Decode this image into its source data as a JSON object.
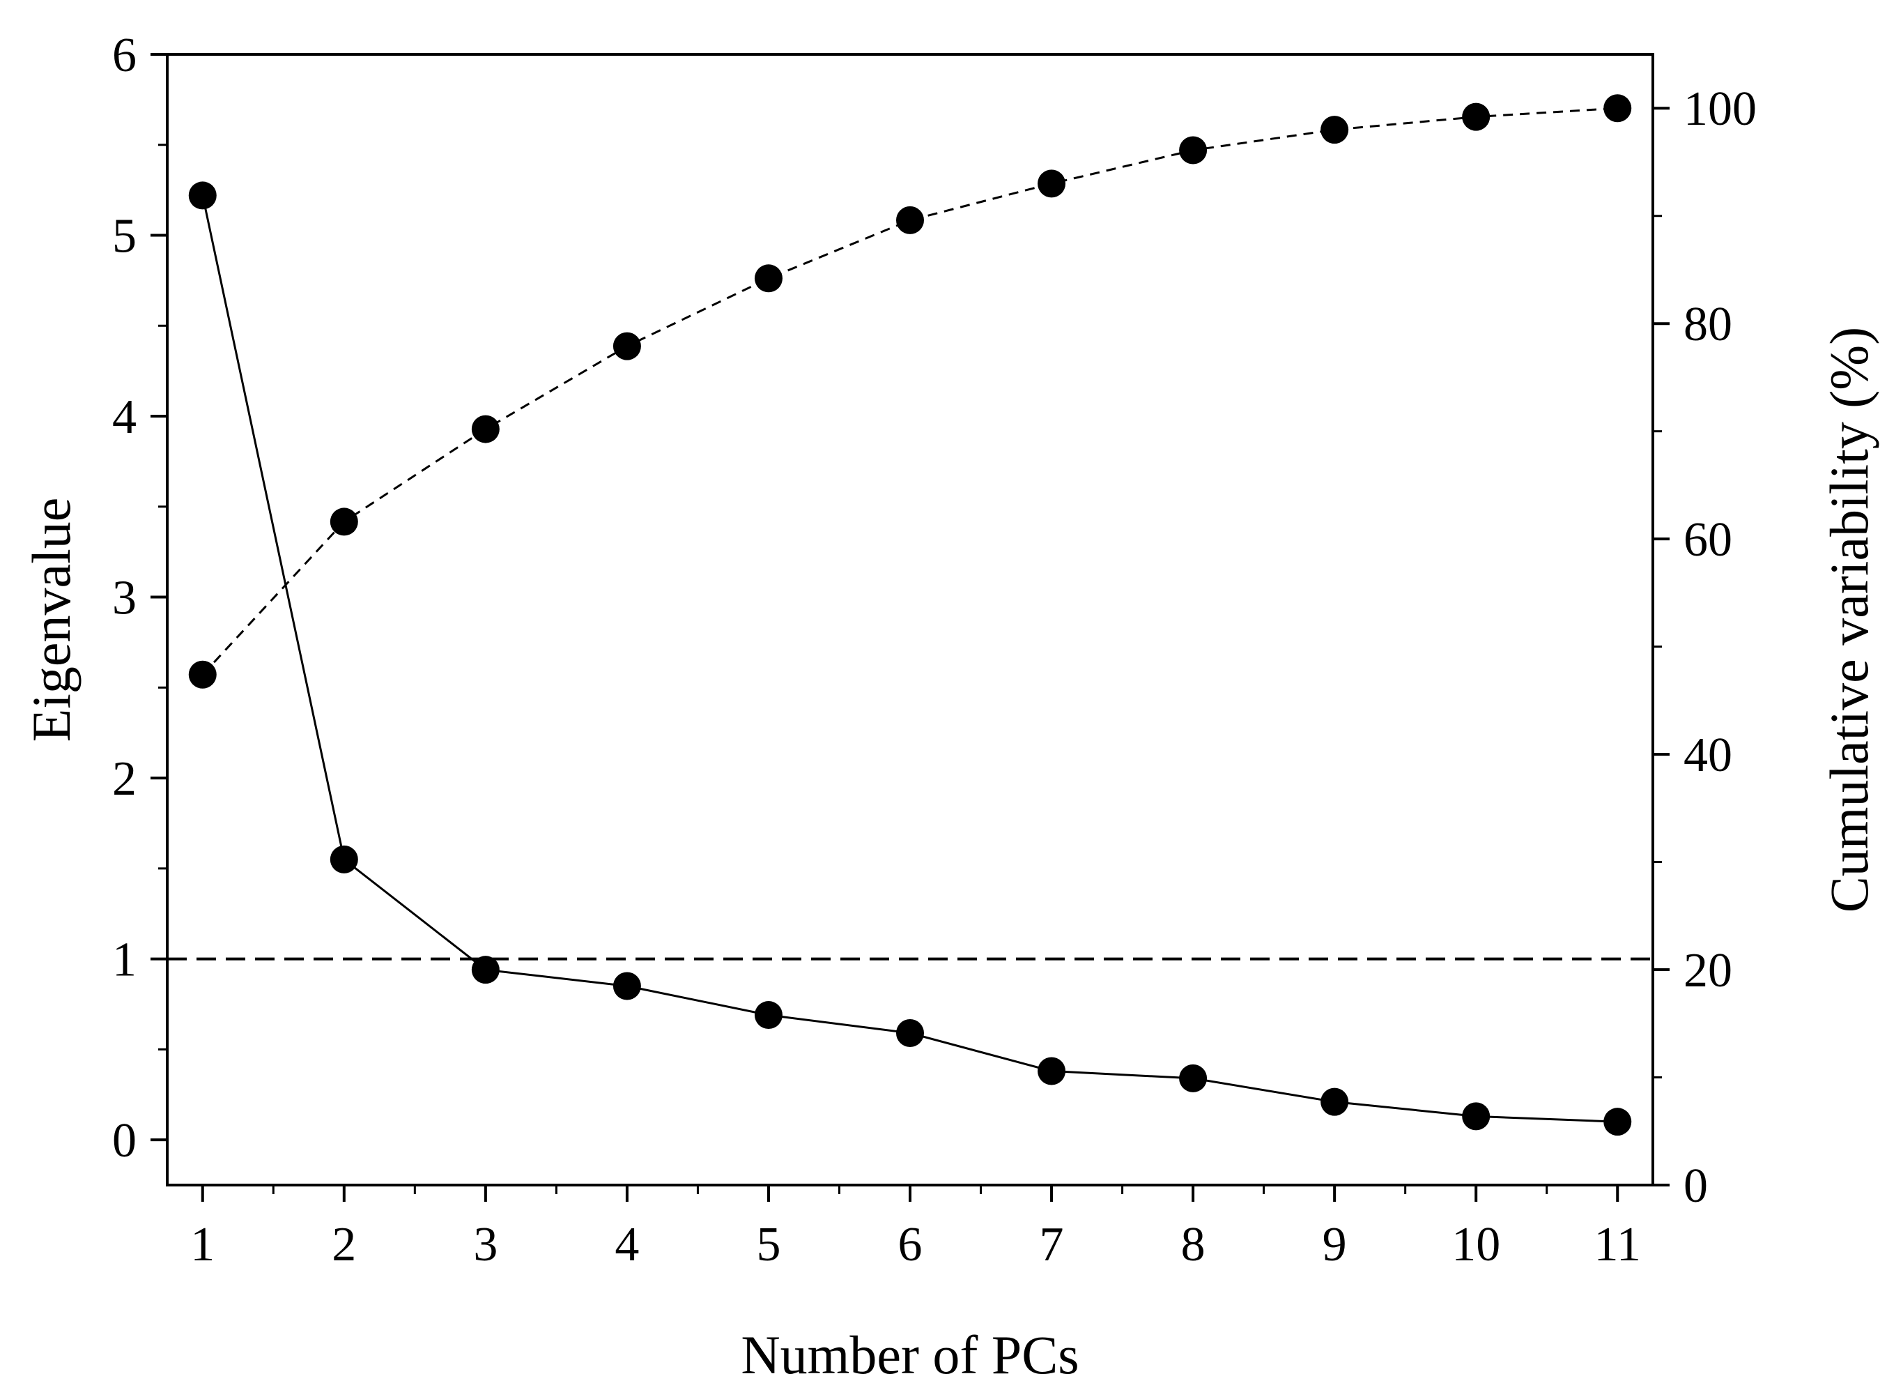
{
  "chart_data": {
    "type": "line",
    "title": "",
    "xlabel": "Number of PCs",
    "ylabel": "Eigenvalue",
    "y2label": "Cumulative variability (%)",
    "x": [
      1,
      2,
      3,
      4,
      5,
      6,
      7,
      8,
      9,
      10,
      11
    ],
    "xticks": [
      "1",
      "2",
      "3",
      "4",
      "5",
      "6",
      "7",
      "8",
      "9",
      "10",
      "11"
    ],
    "xlim": [
      0.75,
      11.25
    ],
    "ylim": [
      -0.25,
      6
    ],
    "y2lim": [
      0,
      105
    ],
    "yticks": [
      "0",
      "1",
      "2",
      "3",
      "4",
      "5",
      "6"
    ],
    "y2ticks": [
      "0",
      "20",
      "40",
      "60",
      "80",
      "100"
    ],
    "reference_line": {
      "axis": "y",
      "value": 1,
      "style": "dashed"
    },
    "grid": false,
    "legend": "none",
    "series": [
      {
        "axis": "left",
        "line_style": "solid",
        "marker": "filled-circle",
        "color": "#000000",
        "values": [
          5.22,
          1.55,
          0.94,
          0.85,
          0.69,
          0.59,
          0.38,
          0.34,
          0.21,
          0.13,
          0.1
        ]
      },
      {
        "axis": "right",
        "line_style": "dashed",
        "marker": "filled-circle",
        "color": "#000000",
        "values": [
          47.4,
          61.6,
          70.2,
          77.9,
          84.2,
          89.6,
          93.0,
          96.1,
          98.0,
          99.2,
          100.0
        ]
      }
    ]
  }
}
